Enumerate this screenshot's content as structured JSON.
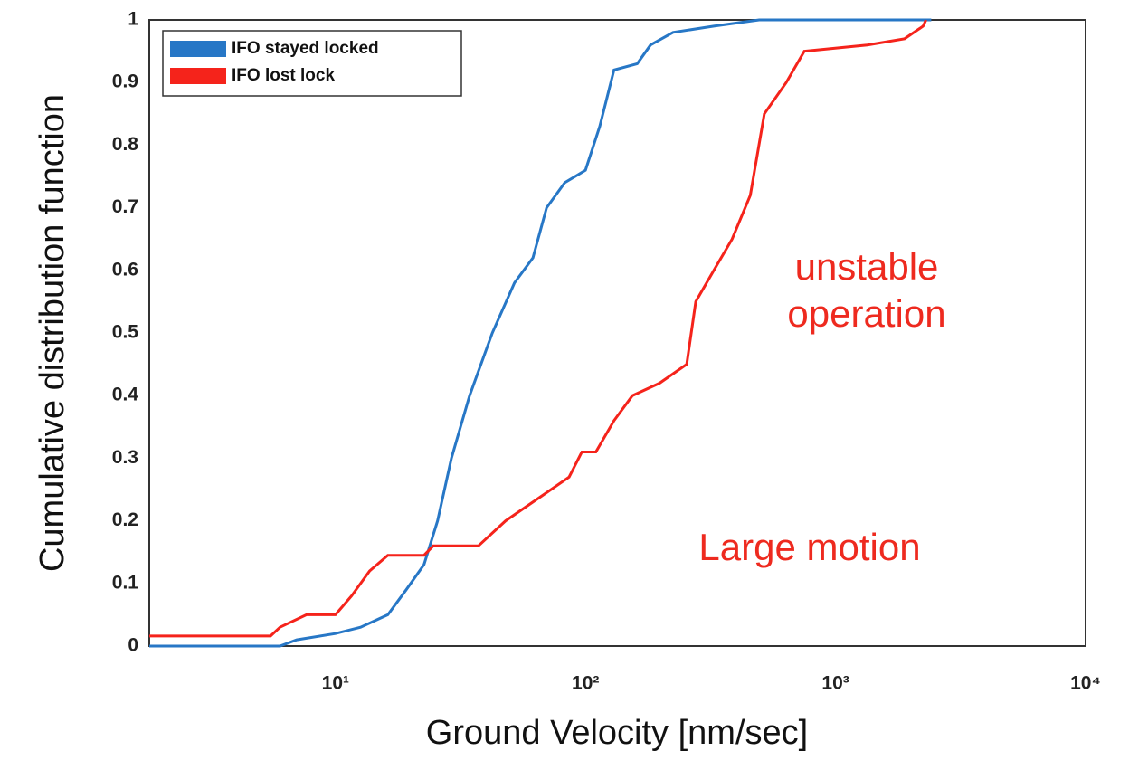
{
  "chart_data": {
    "type": "line",
    "xlabel": "Ground Velocity [nm/sec]",
    "ylabel": "Cumulative distribution function",
    "xscale": "log",
    "xlim": [
      1.8,
      10000
    ],
    "ylim": [
      0,
      1
    ],
    "xticks": [
      {
        "value": 10,
        "label": "10¹"
      },
      {
        "value": 100,
        "label": "10²"
      },
      {
        "value": 1000,
        "label": "10³"
      },
      {
        "value": 10000,
        "label": "10⁴"
      }
    ],
    "yticks": [
      0,
      0.1,
      0.2,
      0.3,
      0.4,
      0.5,
      0.6,
      0.7,
      0.8,
      0.9,
      1
    ],
    "grid": true,
    "legend": "upper left",
    "series": [
      {
        "name": "IFO stayed locked",
        "color": "#2777c6",
        "x": [
          1.8,
          6,
          7,
          10,
          12.6,
          16.2,
          19.2,
          22.6,
          25.6,
          29.1,
          34.4,
          42.4,
          52,
          61.6,
          69.9,
          82.6,
          100,
          114,
          130,
          161,
          182,
          224,
          326,
          495,
          2414
        ],
        "values": [
          0,
          0,
          0.01,
          0.02,
          0.03,
          0.05,
          0.09,
          0.13,
          0.2,
          0.3,
          0.4,
          0.5,
          0.58,
          0.62,
          0.7,
          0.74,
          0.76,
          0.83,
          0.92,
          0.93,
          0.96,
          0.98,
          0.99,
          1,
          1
        ]
      },
      {
        "name": "IFO lost lock",
        "color": "#f5231b",
        "x": [
          1.8,
          5.5,
          6,
          7.66,
          10,
          11.6,
          13.7,
          16.2,
          22.6,
          24.6,
          37.3,
          47.9,
          67,
          86,
          96.7,
          110,
          130,
          154,
          198,
          254,
          276,
          326,
          386,
          456,
          519,
          635,
          750,
          1340,
          1890,
          2240,
          2300
        ],
        "values": [
          0.016,
          0.016,
          0.03,
          0.05,
          0.05,
          0.08,
          0.12,
          0.145,
          0.145,
          0.16,
          0.16,
          0.2,
          0.24,
          0.27,
          0.31,
          0.31,
          0.36,
          0.4,
          0.42,
          0.45,
          0.55,
          0.6,
          0.65,
          0.72,
          0.85,
          0.9,
          0.95,
          0.96,
          0.97,
          0.99,
          1
        ]
      }
    ],
    "annotations": [
      "unstable",
      "operation",
      "Large motion"
    ]
  }
}
